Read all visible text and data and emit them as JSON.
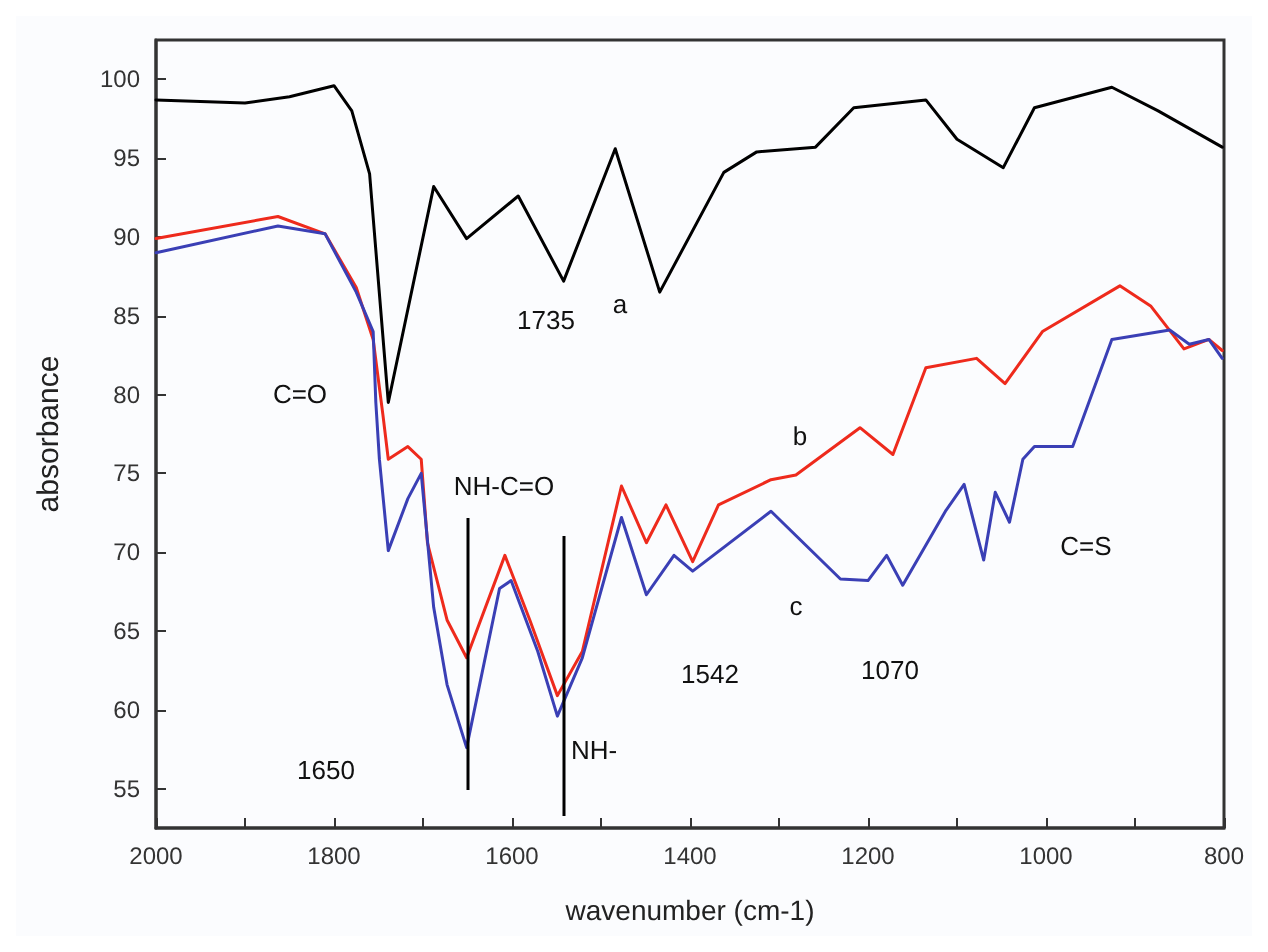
{
  "chart_data": {
    "type": "line",
    "xlabel": "wavenumber (cm-1)",
    "ylabel": "absorbance",
    "xlim": [
      2000,
      800
    ],
    "ylim": [
      52.5,
      102.5
    ],
    "xticks": [
      2000,
      {
        "value": 1900,
        "label": null
      },
      1800,
      {
        "value": 1700,
        "label": null
      },
      1600,
      {
        "value": 1500,
        "label": null
      },
      1400,
      {
        "value": 1300,
        "label": null
      },
      1200,
      {
        "value": 1100,
        "label": null
      },
      1000,
      {
        "value": 900,
        "label": null
      },
      800
    ],
    "yticks": [
      55,
      60,
      65,
      70,
      75,
      80,
      85,
      90,
      95,
      100
    ],
    "grid": false,
    "marker": "none",
    "line_style": "solid",
    "series": [
      {
        "color": "#000000",
        "x": [
          2000,
          1900,
          1850,
          1800,
          1780,
          1760,
          1739,
          1688,
          1651,
          1593,
          1542,
          1484,
          1434,
          1362,
          1325,
          1259,
          1216,
          1135,
          1100,
          1048,
          1013,
          926,
          874,
          802
        ],
        "values": [
          98.7,
          98.5,
          98.9,
          99.6,
          98,
          94,
          79.5,
          93.2,
          89.9,
          92.6,
          87.2,
          95.6,
          86.5,
          94.1,
          95.4,
          95.7,
          98.2,
          98.7,
          96.2,
          94.4,
          98.2,
          99.5,
          98,
          95.7
        ]
      },
      {
        "color": "#ee2a1c",
        "x": [
          2000,
          1863,
          1810,
          1775,
          1756,
          1745,
          1739,
          1717,
          1702,
          1695,
          1673,
          1651,
          1608,
          1580,
          1549,
          1521,
          1477,
          1449,
          1427,
          1397,
          1368,
          1309,
          1281,
          1209,
          1172,
          1135,
          1078,
          1046,
          1004,
          917,
          882,
          845,
          817,
          802
        ],
        "values": [
          89.9,
          91.3,
          90.2,
          86.8,
          83.5,
          78.7,
          75.9,
          76.7,
          75.9,
          70.6,
          65.7,
          63.3,
          69.8,
          65.7,
          60.9,
          63.7,
          74.2,
          70.6,
          73,
          69.4,
          73,
          74.6,
          74.9,
          77.9,
          76.2,
          81.7,
          82.3,
          80.7,
          84,
          86.9,
          85.6,
          82.9,
          83.5,
          82.8
        ]
      },
      {
        "color": "#3a3fb5",
        "x": [
          2000,
          1863,
          1810,
          1775,
          1756,
          1753,
          1749,
          1739,
          1717,
          1702,
          1688,
          1673,
          1651,
          1614,
          1601,
          1571,
          1549,
          1521,
          1477,
          1449,
          1418,
          1397,
          1309,
          1231,
          1200,
          1179,
          1161,
          1113,
          1092,
          1070,
          1057,
          1041,
          1026,
          1013,
          970,
          926,
          861,
          839,
          817,
          802
        ],
        "values": [
          89,
          90.7,
          90.2,
          86.5,
          84,
          79.5,
          75.9,
          70.1,
          73.4,
          75,
          66.5,
          61.6,
          57.6,
          67.7,
          68.2,
          63.7,
          59.6,
          63.3,
          72.2,
          67.3,
          69.8,
          68.8,
          72.6,
          68.3,
          68.2,
          69.8,
          67.9,
          72.6,
          74.3,
          69.5,
          73.8,
          71.9,
          75.9,
          76.7,
          76.7,
          83.5,
          84.1,
          83.2,
          83.5,
          82.3
        ]
      }
    ],
    "ref_lines": [
      {
        "axis": "x",
        "value": 1650
      },
      {
        "axis": "x",
        "value": 1542
      }
    ],
    "annotations": [
      "a",
      "1735",
      "C=O",
      "NH-C=O",
      "1650",
      "NH-",
      "1542",
      "b",
      "c",
      "1070",
      "C=S"
    ]
  }
}
